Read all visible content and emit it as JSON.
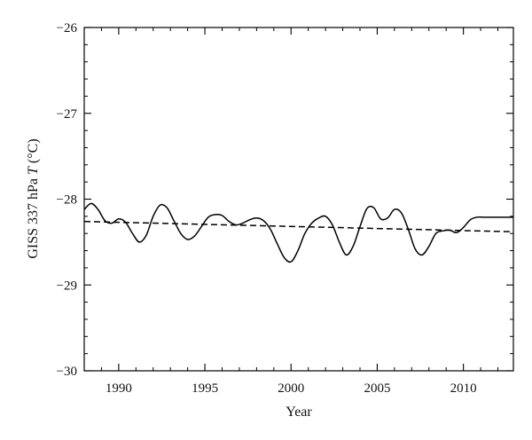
{
  "chart_data": {
    "type": "line",
    "title": "",
    "xlabel": "Year",
    "ylabel_parts": [
      "GISS 337 hPa ",
      "T",
      " (°C)"
    ],
    "xlim": [
      1988.0,
      2012.9
    ],
    "ylim": [
      -30,
      -26
    ],
    "xticks": [
      1990,
      1995,
      2000,
      2005,
      2010
    ],
    "xtick_labels": [
      "1990",
      "1995",
      "2000",
      "2005",
      "2010"
    ],
    "yticks": [
      -30,
      -29,
      -28,
      -27,
      -26
    ],
    "ytick_labels": [
      "−30",
      "−29",
      "−28",
      "−27",
      "−26"
    ],
    "x_minor_step": 1,
    "y_minor_step": 0.2,
    "grid": false,
    "legend": "none",
    "colors": {
      "series": "#000000",
      "trend": "#000000",
      "axis": "#000000"
    },
    "series": [
      {
        "style": "solid",
        "x": [
          1988.0,
          1988.4,
          1988.8,
          1989.2,
          1989.6,
          1990.0,
          1990.4,
          1990.8,
          1991.2,
          1991.6,
          1992.0,
          1992.4,
          1992.8,
          1993.2,
          1993.6,
          1994.0,
          1994.4,
          1994.8,
          1995.2,
          1995.6,
          1996.0,
          1996.4,
          1996.8,
          1997.2,
          1997.6,
          1998.0,
          1998.4,
          1998.8,
          1999.2,
          1999.6,
          2000.0,
          2000.4,
          2000.8,
          2001.2,
          2001.6,
          2002.0,
          2002.4,
          2002.8,
          2003.2,
          2003.6,
          2004.0,
          2004.4,
          2004.8,
          2005.2,
          2005.6,
          2006.0,
          2006.4,
          2006.8,
          2007.2,
          2007.6,
          2008.0,
          2008.4,
          2008.8,
          2009.2,
          2009.6,
          2010.0,
          2010.4,
          2010.8,
          2011.2,
          2011.6,
          2012.0,
          2012.4,
          2012.9
        ],
        "y": [
          -28.12,
          -28.05,
          -28.12,
          -28.25,
          -28.28,
          -28.23,
          -28.27,
          -28.4,
          -28.5,
          -28.42,
          -28.2,
          -28.07,
          -28.1,
          -28.25,
          -28.4,
          -28.47,
          -28.43,
          -28.32,
          -28.21,
          -28.18,
          -28.19,
          -28.26,
          -28.3,
          -28.28,
          -28.24,
          -28.22,
          -28.25,
          -28.35,
          -28.52,
          -28.68,
          -28.73,
          -28.6,
          -28.4,
          -28.28,
          -28.22,
          -28.2,
          -28.3,
          -28.5,
          -28.65,
          -28.55,
          -28.32,
          -28.11,
          -28.1,
          -28.23,
          -28.22,
          -28.12,
          -28.16,
          -28.35,
          -28.58,
          -28.65,
          -28.55,
          -28.4,
          -28.37,
          -28.36,
          -28.39,
          -28.33,
          -28.24,
          -28.21,
          -28.21,
          -28.21,
          -28.21,
          -28.21,
          -28.21
        ]
      },
      {
        "style": "dashed",
        "x": [
          1988.0,
          2012.9
        ],
        "y": [
          -28.26,
          -28.38
        ]
      }
    ]
  }
}
